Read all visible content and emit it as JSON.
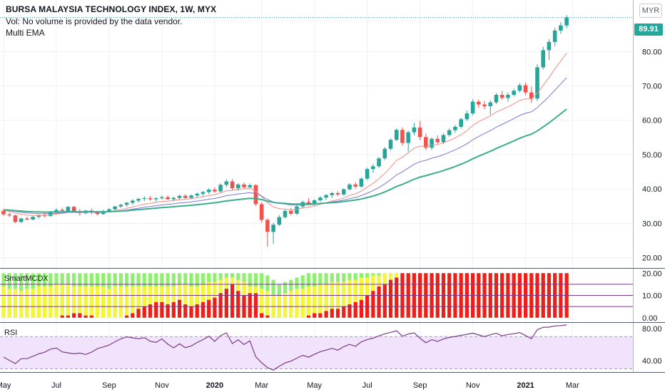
{
  "header": {
    "title": "BURSA MALAYSIA TECHNOLOGY INDEX, 1W, MYX",
    "volume_note": "Vol: No volume is provided by the data vendor.",
    "indicator": "Multi EMA"
  },
  "currency_button": "MYR",
  "last_price_label": "89.91",
  "colors": {
    "up": "#26a69a",
    "down": "#ef5350",
    "ema_fast": "#f28b82",
    "ema_mid": "#7b78d8",
    "ema_slow": "#3cae8e",
    "hist_red": "#ef1e1e",
    "hist_yellow": "#f5f53a",
    "hist_green": "#8ef06e",
    "rsi_line": "#7a3a8c",
    "rsi_band": "#f1e3fb"
  },
  "chart_data": [
    {
      "type": "candlestick",
      "ylim": [
        17,
        95
      ],
      "yticks": [
        "20.00",
        "30.00",
        "40.00",
        "50.00",
        "60.00",
        "70.00",
        "80.00"
      ],
      "yticks_values": [
        20,
        30,
        40,
        50,
        60,
        70,
        80
      ],
      "last_price": 89.91,
      "x_tick_labels": [
        "May",
        "Jul",
        "Sep",
        "Nov",
        "2020",
        "Mar",
        "May",
        "Jul",
        "Sep",
        "Nov",
        "2021",
        "Mar"
      ],
      "x_tick_weeks": [
        0,
        9,
        18,
        27,
        36,
        44,
        53,
        62,
        71,
        80,
        89,
        97
      ],
      "x_tick_bold": [
        false,
        false,
        false,
        false,
        true,
        false,
        false,
        false,
        false,
        false,
        true,
        false
      ],
      "candles": [
        [
          33.6,
          34.2,
          32.2,
          32.6
        ],
        [
          32.6,
          33.2,
          31.8,
          32.3
        ],
        [
          32.3,
          32.5,
          30.0,
          30.4
        ],
        [
          30.4,
          31.6,
          30.1,
          31.4
        ],
        [
          31.4,
          31.9,
          30.8,
          31.1
        ],
        [
          31.1,
          32.1,
          30.9,
          31.9
        ],
        [
          31.9,
          32.6,
          31.4,
          32.4
        ],
        [
          32.4,
          33.1,
          31.8,
          32.1
        ],
        [
          32.1,
          33.6,
          32.0,
          33.4
        ],
        [
          33.4,
          34.4,
          33.0,
          33.9
        ],
        [
          33.9,
          34.6,
          33.2,
          33.6
        ],
        [
          33.6,
          35.0,
          33.3,
          34.8
        ],
        [
          34.8,
          35.1,
          33.1,
          33.5
        ],
        [
          33.5,
          34.2,
          32.2,
          33.0
        ],
        [
          33.0,
          33.9,
          32.6,
          33.7
        ],
        [
          33.7,
          34.3,
          32.7,
          33.1
        ],
        [
          33.1,
          33.6,
          32.3,
          32.7
        ],
        [
          32.7,
          33.9,
          32.5,
          33.6
        ],
        [
          33.6,
          34.4,
          33.2,
          34.1
        ],
        [
          34.1,
          35.1,
          33.8,
          34.9
        ],
        [
          34.9,
          35.7,
          34.5,
          35.4
        ],
        [
          35.4,
          36.2,
          34.8,
          36.0
        ],
        [
          36.0,
          37.0,
          35.4,
          36.6
        ],
        [
          36.6,
          37.4,
          36.0,
          37.1
        ],
        [
          37.1,
          37.9,
          36.5,
          37.3
        ],
        [
          37.3,
          38.0,
          36.6,
          37.0
        ],
        [
          37.0,
          37.6,
          36.3,
          37.3
        ],
        [
          37.3,
          38.1,
          36.9,
          37.6
        ],
        [
          37.6,
          38.2,
          36.8,
          37.0
        ],
        [
          37.0,
          37.8,
          36.4,
          37.4
        ],
        [
          37.4,
          38.3,
          37.0,
          38.0
        ],
        [
          38.0,
          38.5,
          37.1,
          37.4
        ],
        [
          37.4,
          38.4,
          37.0,
          38.1
        ],
        [
          38.1,
          39.0,
          37.6,
          38.6
        ],
        [
          38.6,
          39.4,
          37.9,
          39.1
        ],
        [
          39.1,
          40.2,
          38.5,
          39.8
        ],
        [
          39.8,
          40.5,
          38.9,
          39.3
        ],
        [
          39.3,
          41.6,
          39.0,
          41.2
        ],
        [
          41.2,
          42.8,
          40.5,
          42.2
        ],
        [
          42.2,
          42.9,
          39.6,
          40.2
        ],
        [
          40.2,
          41.7,
          39.4,
          41.3
        ],
        [
          41.3,
          41.9,
          40.0,
          40.5
        ],
        [
          40.5,
          41.6,
          40.1,
          41.1
        ],
        [
          41.1,
          41.4,
          35.1,
          35.6
        ],
        [
          35.6,
          36.2,
          30.2,
          31.0
        ],
        [
          31.0,
          31.5,
          23.2,
          27.5
        ],
        [
          27.5,
          30.2,
          24.0,
          29.6
        ],
        [
          29.6,
          32.4,
          29.2,
          31.8
        ],
        [
          31.8,
          34.0,
          31.4,
          33.6
        ],
        [
          33.6,
          34.5,
          32.3,
          32.8
        ],
        [
          32.8,
          35.2,
          32.4,
          34.9
        ],
        [
          34.9,
          36.6,
          34.3,
          36.2
        ],
        [
          36.2,
          37.3,
          35.2,
          35.7
        ],
        [
          35.7,
          37.0,
          35.1,
          36.7
        ],
        [
          36.7,
          37.9,
          36.3,
          37.5
        ],
        [
          37.5,
          38.6,
          36.8,
          38.2
        ],
        [
          38.2,
          39.2,
          37.4,
          38.8
        ],
        [
          38.8,
          39.3,
          37.9,
          38.4
        ],
        [
          38.4,
          40.2,
          38.0,
          39.9
        ],
        [
          39.9,
          41.7,
          39.5,
          41.3
        ],
        [
          41.3,
          42.0,
          40.1,
          40.7
        ],
        [
          40.7,
          43.4,
          40.4,
          43.0
        ],
        [
          43.0,
          46.2,
          42.6,
          45.8
        ],
        [
          45.8,
          47.3,
          44.7,
          46.6
        ],
        [
          46.6,
          49.3,
          46.1,
          48.9
        ],
        [
          48.9,
          52.2,
          48.4,
          51.7
        ],
        [
          51.7,
          54.8,
          51.2,
          54.3
        ],
        [
          54.3,
          57.6,
          53.9,
          57.2
        ],
        [
          57.2,
          57.9,
          52.6,
          53.4
        ],
        [
          53.4,
          57.0,
          50.9,
          56.5
        ],
        [
          56.5,
          59.2,
          55.6,
          57.9
        ],
        [
          57.9,
          59.8,
          54.2,
          55.1
        ],
        [
          55.1,
          56.1,
          51.3,
          52.0
        ],
        [
          52.0,
          55.0,
          51.4,
          54.6
        ],
        [
          54.6,
          55.6,
          53.1,
          53.6
        ],
        [
          53.6,
          56.2,
          53.1,
          55.7
        ],
        [
          55.7,
          57.6,
          55.2,
          57.1
        ],
        [
          57.1,
          58.7,
          56.4,
          58.1
        ],
        [
          58.1,
          60.8,
          57.6,
          60.3
        ],
        [
          60.3,
          62.8,
          59.8,
          62.0
        ],
        [
          62.0,
          66.1,
          61.5,
          65.4
        ],
        [
          65.4,
          66.0,
          63.6,
          64.6
        ],
        [
          64.6,
          65.6,
          63.1,
          64.1
        ],
        [
          64.1,
          65.8,
          61.6,
          65.2
        ],
        [
          65.2,
          67.9,
          64.7,
          67.4
        ],
        [
          67.4,
          68.6,
          65.9,
          66.5
        ],
        [
          66.5,
          68.0,
          65.4,
          67.4
        ],
        [
          67.4,
          69.2,
          66.9,
          68.6
        ],
        [
          68.6,
          70.8,
          68.1,
          70.2
        ],
        [
          70.2,
          71.0,
          67.3,
          68.1
        ],
        [
          68.1,
          69.8,
          65.1,
          66.3
        ],
        [
          66.3,
          76.3,
          65.6,
          75.4
        ],
        [
          75.4,
          81.4,
          74.8,
          80.4
        ],
        [
          80.4,
          83.6,
          77.6,
          82.8
        ],
        [
          82.8,
          86.9,
          81.6,
          86.1
        ],
        [
          86.1,
          88.6,
          85.1,
          87.6
        ],
        [
          87.6,
          90.6,
          86.8,
          89.91
        ]
      ]
    },
    {
      "type": "bar",
      "title": "SmartMCDX",
      "ylim": [
        -2,
        22
      ],
      "yticks": [
        "0.00",
        "10.00",
        "20.00"
      ],
      "yticks_values": [
        0,
        10,
        20
      ],
      "red": [
        0,
        0,
        0,
        0,
        0,
        0,
        0,
        0,
        0,
        0,
        1,
        1,
        2,
        2,
        1,
        1,
        0,
        0,
        0,
        0,
        0,
        1,
        2,
        4,
        5,
        6,
        7,
        7,
        6,
        7,
        8,
        6,
        5,
        6,
        7,
        8,
        9,
        11,
        13,
        15,
        12,
        10,
        11,
        11,
        2,
        1,
        0,
        0,
        0,
        0,
        0,
        0,
        1,
        2,
        2,
        3,
        4,
        4,
        5,
        6,
        7,
        8,
        10,
        12,
        14,
        15,
        17,
        18,
        20,
        20,
        20,
        20,
        20,
        20,
        20,
        20,
        20,
        20,
        20,
        20,
        20,
        20,
        20,
        20,
        20,
        20,
        20,
        20,
        20,
        20,
        20,
        20,
        20,
        20,
        20,
        20,
        20
      ],
      "yellow": [
        14,
        13,
        13,
        12,
        13,
        13,
        14,
        14,
        14,
        15,
        15,
        15,
        14,
        14,
        14,
        14,
        14,
        14,
        13,
        14,
        14,
        14,
        14,
        14,
        14,
        14,
        14,
        14,
        14,
        14,
        15,
        15,
        14,
        14,
        15,
        16,
        16,
        17,
        18,
        18,
        17,
        16,
        14,
        14,
        13,
        12,
        10,
        10,
        11,
        12,
        13,
        13,
        14,
        14,
        15,
        15,
        16,
        16,
        16,
        17,
        17,
        18,
        18,
        19,
        19,
        20,
        20,
        20,
        20,
        20,
        20,
        20,
        20,
        20,
        20,
        20,
        20,
        20,
        20,
        20,
        20,
        20,
        20,
        20,
        20,
        20,
        20,
        20,
        20,
        20,
        20,
        20,
        20,
        20,
        20,
        20,
        20
      ],
      "green": [
        20,
        20,
        20,
        20,
        20,
        20,
        20,
        20,
        20,
        20,
        20,
        20,
        20,
        20,
        20,
        20,
        20,
        20,
        20,
        20,
        20,
        20,
        20,
        20,
        20,
        20,
        20,
        20,
        20,
        20,
        20,
        20,
        20,
        20,
        20,
        20,
        20,
        20,
        20,
        20,
        20,
        20,
        20,
        20,
        20,
        19,
        17,
        15,
        16,
        17,
        18,
        19,
        20,
        20,
        20,
        20,
        20,
        20,
        20,
        20,
        20,
        20,
        20,
        20,
        20,
        20,
        20,
        20,
        20,
        20,
        20,
        20,
        20,
        20,
        20,
        20,
        20,
        20,
        20,
        20,
        20,
        20,
        20,
        20,
        20,
        20,
        20,
        20,
        20,
        20,
        20,
        20,
        20,
        20,
        20,
        20,
        20
      ],
      "levels": [
        5,
        10,
        15
      ]
    },
    {
      "type": "line",
      "title": "RSI",
      "ylim": [
        26,
        87
      ],
      "yticks": [
        "40.00",
        "80.00"
      ],
      "yticks_values": [
        40,
        80
      ],
      "band": [
        30,
        70
      ],
      "values": [
        44.5,
        40.5,
        36.5,
        42.5,
        42.6,
        45.5,
        48.5,
        50.6,
        54.5,
        55.8,
        51.0,
        49.8,
        48.6,
        49.5,
        47.8,
        50.7,
        55.0,
        57.1,
        59.5,
        63.6,
        67.2,
        69.7,
        68.4,
        67.3,
        68.6,
        64.2,
        62.8,
        67.1,
        60.5,
        56.1,
        61.0,
        56.2,
        58.4,
        62.7,
        66.2,
        70.5,
        64.0,
        71.1,
        74.6,
        61.4,
        66.0,
        60.1,
        64.7,
        44.8,
        37.5,
        31.5,
        28.4,
        33.2,
        37.3,
        39.5,
        43.2,
        46.8,
        44.5,
        48.0,
        51.3,
        53.2,
        55.4,
        53.1,
        57.5,
        60.4,
        57.9,
        63.5,
        66.3,
        68.0,
        70.9,
        73.4,
        75.2,
        77.3,
        70.5,
        73.2,
        74.6,
        68.0,
        62.3,
        66.1,
        64.0,
        67.0,
        69.0,
        70.1,
        71.5,
        72.8,
        74.3,
        72.0,
        70.0,
        72.2,
        74.1,
        71.0,
        72.6,
        73.6,
        75.0,
        71.3,
        67.3,
        78.5,
        81.5,
        81.7,
        83.2,
        83.6,
        84.4
      ]
    }
  ]
}
